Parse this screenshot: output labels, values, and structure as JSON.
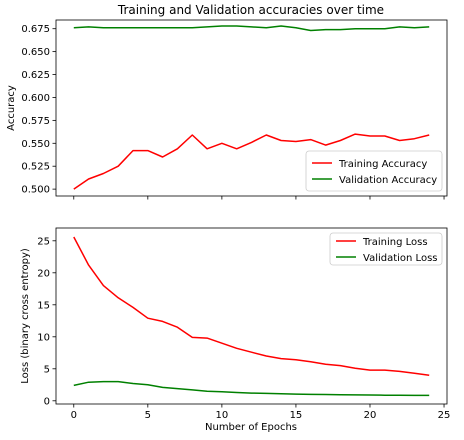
{
  "chart_data": [
    {
      "type": "line",
      "title": "Training and Validation accuracies over time",
      "xlabel": "",
      "ylabel": "Accuracy",
      "xlim": [
        -1.2,
        25.2
      ],
      "ylim": [
        0.4925,
        0.6845
      ],
      "x_ticks": [
        0,
        5,
        10,
        15,
        20,
        25
      ],
      "x_tick_labels_shown": false,
      "y_ticks": [
        0.5,
        0.525,
        0.55,
        0.575,
        0.6,
        0.625,
        0.65,
        0.675
      ],
      "y_tick_labels": [
        "0.500",
        "0.525",
        "0.550",
        "0.575",
        "0.600",
        "0.625",
        "0.650",
        "0.675"
      ],
      "legend_position": "lower right",
      "grid": false,
      "x": [
        0,
        1,
        2,
        3,
        4,
        5,
        6,
        7,
        8,
        9,
        10,
        11,
        12,
        13,
        14,
        15,
        16,
        17,
        18,
        19,
        20,
        21,
        22,
        23,
        24
      ],
      "series": [
        {
          "name": "Training Accuracy",
          "color": "#ff0000",
          "values": [
            0.5,
            0.511,
            0.517,
            0.525,
            0.542,
            0.542,
            0.535,
            0.544,
            0.559,
            0.544,
            0.55,
            0.544,
            0.551,
            0.559,
            0.553,
            0.552,
            0.554,
            0.548,
            0.553,
            0.56,
            0.558,
            0.558,
            0.553,
            0.555,
            0.559
          ]
        },
        {
          "name": "Validation Accuracy",
          "color": "#008000",
          "values": [
            0.676,
            0.677,
            0.676,
            0.676,
            0.676,
            0.676,
            0.676,
            0.676,
            0.676,
            0.677,
            0.678,
            0.678,
            0.677,
            0.676,
            0.678,
            0.676,
            0.673,
            0.674,
            0.674,
            0.675,
            0.675,
            0.675,
            0.677,
            0.676,
            0.677
          ]
        }
      ]
    },
    {
      "type": "line",
      "title": "",
      "xlabel": "Number of Epochs",
      "ylabel": "Loss (binary cross entropy)",
      "xlim": [
        -1.2,
        25.2
      ],
      "ylim": [
        -0.5,
        27
      ],
      "x_ticks": [
        0,
        5,
        10,
        15,
        20,
        25
      ],
      "x_tick_labels": [
        "0",
        "5",
        "10",
        "15",
        "20",
        "25"
      ],
      "y_ticks": [
        0,
        5,
        10,
        15,
        20,
        25
      ],
      "y_tick_labels": [
        "0",
        "5",
        "10",
        "15",
        "20",
        "25"
      ],
      "legend_position": "upper right",
      "grid": false,
      "x": [
        0,
        1,
        2,
        3,
        4,
        5,
        6,
        7,
        8,
        9,
        10,
        11,
        12,
        13,
        14,
        15,
        16,
        17,
        18,
        19,
        20,
        21,
        22,
        23,
        24
      ],
      "series": [
        {
          "name": "Training Loss",
          "color": "#ff0000",
          "values": [
            25.6,
            21.2,
            18.0,
            16.1,
            14.6,
            12.9,
            12.4,
            11.5,
            9.9,
            9.8,
            9.0,
            8.2,
            7.6,
            7.0,
            6.6,
            6.4,
            6.1,
            5.7,
            5.5,
            5.1,
            4.8,
            4.8,
            4.6,
            4.3,
            4.0
          ]
        },
        {
          "name": "Validation Loss",
          "color": "#008000",
          "values": [
            2.4,
            2.9,
            3.0,
            3.0,
            2.7,
            2.5,
            2.1,
            1.9,
            1.7,
            1.5,
            1.4,
            1.3,
            1.2,
            1.15,
            1.1,
            1.05,
            1.0,
            0.98,
            0.95,
            0.92,
            0.9,
            0.88,
            0.86,
            0.85,
            0.84
          ]
        }
      ]
    }
  ]
}
